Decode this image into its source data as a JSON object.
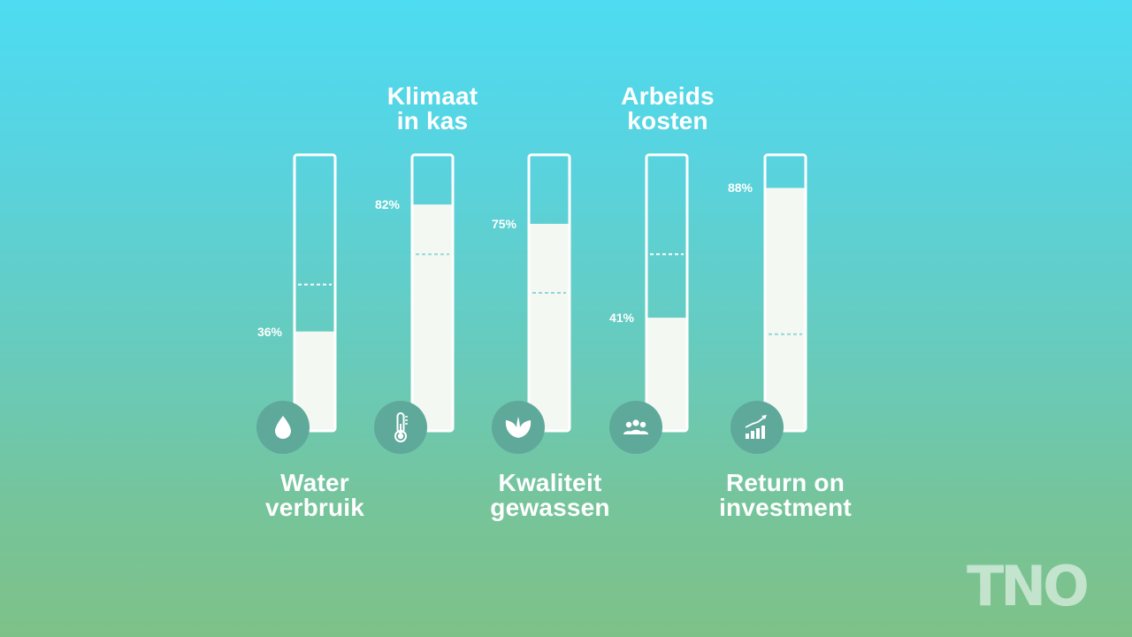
{
  "chart_data": {
    "type": "bar",
    "categories": [
      "Water verbruik",
      "Klimaat in kas",
      "Kwaliteit gewassen",
      "Arbeids kosten",
      "Return on investment"
    ],
    "values": [
      36,
      82,
      75,
      41,
      88
    ],
    "value_labels": [
      "36%",
      "82%",
      "75%",
      "41%",
      "88%"
    ],
    "reference_values": [
      53,
      64,
      50,
      64,
      35
    ],
    "ylim": [
      0,
      100
    ],
    "icons": [
      "water-drop-icon",
      "thermometer-icon",
      "leaves-icon",
      "people-group-icon",
      "growth-chart-icon"
    ],
    "colors": {
      "fill": "#f4f8f3",
      "outline": "#ffffff",
      "reference": "#8fd8d8",
      "icon_bg": "#5fa99b"
    }
  },
  "captions": {
    "water": "Water\nverbruik",
    "klimaat": "Klimaat\nin kas",
    "kwaliteit": "Kwaliteit\ngewassen",
    "arbeid": "Arbeids\nkosten",
    "roi": "Return on\ninvestment"
  },
  "logo": {
    "text": "TNO"
  }
}
